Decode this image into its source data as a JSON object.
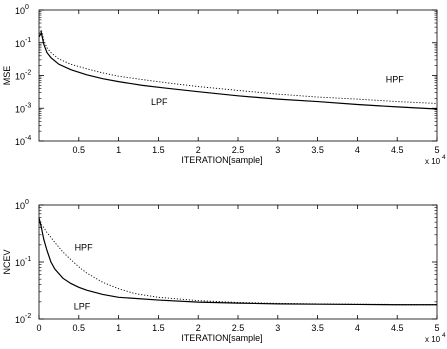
{
  "chart_data": [
    {
      "type": "line",
      "ylabel": "MSE",
      "xlabel": "ITERATION[sample]",
      "x_multiplier_label": "x 10",
      "x_multiplier_exp": "4",
      "xscale": "linear",
      "yscale": "log",
      "xlim": [
        0,
        5
      ],
      "ylim": [
        0.0001,
        1
      ],
      "xticks": [
        "0.5",
        "1",
        "1.5",
        "2",
        "2.5",
        "3",
        "3.5",
        "4",
        "4.5",
        "5"
      ],
      "xtick_values": [
        0.5,
        1,
        1.5,
        2,
        2.5,
        3,
        3.5,
        4,
        4.5,
        5
      ],
      "ytick_exponents": [
        "0",
        "-1",
        "-2",
        "-3",
        "-4"
      ],
      "ytick_values": [
        1,
        0.1,
        0.01,
        0.001,
        0.0001
      ],
      "grid": false,
      "series": [
        {
          "name": "HPF",
          "style": "dotted",
          "x": [
            0,
            0.03,
            0.06,
            0.1,
            0.15,
            0.25,
            0.4,
            0.6,
            0.8,
            1,
            1.3,
            1.6,
            2,
            2.5,
            3,
            3.5,
            4,
            4.5,
            5
          ],
          "y": [
            0.18,
            0.25,
            0.12,
            0.07,
            0.05,
            0.032,
            0.022,
            0.016,
            0.012,
            0.0095,
            0.0075,
            0.006,
            0.0046,
            0.0035,
            0.0027,
            0.0022,
            0.0019,
            0.0016,
            0.0014
          ]
        },
        {
          "name": "LPF",
          "style": "solid",
          "x": [
            0,
            0.03,
            0.06,
            0.1,
            0.15,
            0.25,
            0.4,
            0.6,
            0.8,
            1,
            1.3,
            1.6,
            2,
            2.5,
            3,
            3.5,
            4,
            4.5,
            5
          ],
          "y": [
            0.15,
            0.2,
            0.09,
            0.05,
            0.035,
            0.022,
            0.015,
            0.0105,
            0.008,
            0.0065,
            0.005,
            0.0041,
            0.0032,
            0.0024,
            0.0019,
            0.0016,
            0.0013,
            0.0011,
            0.00095
          ]
        }
      ],
      "annotations": [
        "HPF",
        "LPF"
      ]
    },
    {
      "type": "line",
      "ylabel": "NCEV",
      "xlabel": "ITERATION[sample]",
      "x_multiplier_label": "x 10",
      "x_multiplier_exp": "4",
      "xscale": "linear",
      "yscale": "log",
      "xlim": [
        0,
        5
      ],
      "ylim": [
        0.01,
        1
      ],
      "xticks": [
        "0",
        "0.5",
        "1",
        "1.5",
        "2",
        "2.5",
        "3",
        "3.5",
        "4",
        "4.5",
        "5"
      ],
      "xtick_values": [
        0,
        0.5,
        1,
        1.5,
        2,
        2.5,
        3,
        3.5,
        4,
        4.5,
        5
      ],
      "ytick_exponents": [
        "0",
        "-1",
        "-2"
      ],
      "ytick_values": [
        1,
        0.1,
        0.01
      ],
      "grid": false,
      "series": [
        {
          "name": "HPF",
          "style": "dotted",
          "x": [
            0,
            0.05,
            0.1,
            0.2,
            0.3,
            0.4,
            0.5,
            0.6,
            0.8,
            1,
            1.2,
            1.5,
            2,
            2.5,
            3,
            3.5,
            4,
            4.5,
            5
          ],
          "y": [
            0.5,
            0.42,
            0.33,
            0.22,
            0.15,
            0.11,
            0.082,
            0.064,
            0.044,
            0.034,
            0.028,
            0.024,
            0.021,
            0.0195,
            0.0188,
            0.0184,
            0.0182,
            0.018,
            0.018
          ]
        },
        {
          "name": "LPF",
          "style": "solid",
          "x": [
            0,
            0.03,
            0.06,
            0.1,
            0.15,
            0.2,
            0.3,
            0.4,
            0.5,
            0.6,
            0.8,
            1,
            1.2,
            1.5,
            2,
            2.5,
            3,
            3.5,
            4,
            4.5,
            5
          ],
          "y": [
            0.6,
            0.4,
            0.25,
            0.16,
            0.1,
            0.075,
            0.052,
            0.042,
            0.036,
            0.032,
            0.027,
            0.024,
            0.023,
            0.0215,
            0.0198,
            0.019,
            0.0184,
            0.0182,
            0.018,
            0.0178,
            0.0178
          ]
        }
      ],
      "annotations": [
        "HPF",
        "LPF"
      ]
    }
  ]
}
